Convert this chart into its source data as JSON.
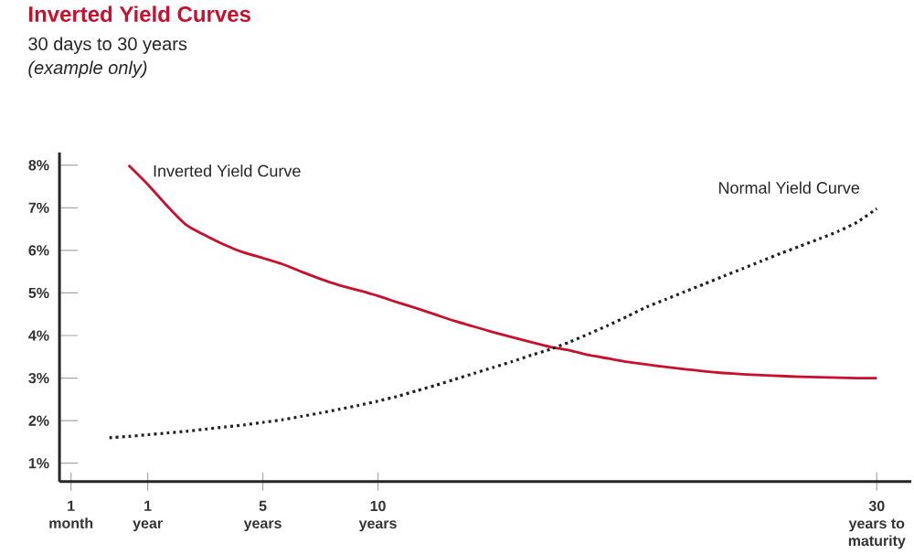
{
  "chart_data": {
    "type": "line",
    "title": "Inverted Yield Curves",
    "subtitle": "30 days to 30 years",
    "annotations": [
      "(example only)"
    ],
    "categories": [
      "1 month",
      null,
      null,
      null,
      "1 year",
      null,
      null,
      null,
      null,
      null,
      "5 years",
      null,
      null,
      null,
      null,
      null,
      "10 years",
      null,
      null,
      null,
      null,
      null,
      null,
      null,
      null,
      null,
      null,
      null,
      null,
      null,
      null,
      null,
      null,
      null,
      null,
      null,
      null,
      null,
      null,
      null,
      null,
      null,
      "30 years to maturity"
    ],
    "ylim": [
      0.57,
      8.3
    ],
    "yticks": [
      {
        "value": 1,
        "label": "1%"
      },
      {
        "value": 2,
        "label": "2%"
      },
      {
        "value": 3,
        "label": "3%"
      },
      {
        "value": 4,
        "label": "4%"
      },
      {
        "value": 5,
        "label": "5%"
      },
      {
        "value": 6,
        "label": "6%"
      },
      {
        "value": 7,
        "label": "7%"
      },
      {
        "value": 8,
        "label": "8%"
      }
    ],
    "marker": "none",
    "series": [
      {
        "name": "Inverted Yield Curve",
        "color": "#c8102e",
        "line_style": "solid",
        "values": [
          null,
          null,
          null,
          8.0,
          7.55,
          7.05,
          6.6,
          6.35,
          6.13,
          5.95,
          5.82,
          5.68,
          5.5,
          5.33,
          5.18,
          5.06,
          4.93,
          4.78,
          4.64,
          4.49,
          4.34,
          4.21,
          4.08,
          3.96,
          3.84,
          3.73,
          3.65,
          3.54,
          3.46,
          3.38,
          3.32,
          3.26,
          3.21,
          3.16,
          3.12,
          3.09,
          3.07,
          3.05,
          3.03,
          3.02,
          3.01,
          3.0,
          3.0
        ]
      },
      {
        "name": "Normal Yield Curve",
        "color": "#222222",
        "line_style": "dotted",
        "values": [
          null,
          null,
          1.6,
          1.63,
          1.67,
          1.71,
          1.75,
          1.8,
          1.85,
          1.9,
          1.96,
          2.02,
          2.1,
          2.18,
          2.27,
          2.36,
          2.46,
          2.57,
          2.7,
          2.83,
          2.97,
          3.11,
          3.25,
          3.39,
          3.54,
          3.68,
          3.85,
          4.04,
          4.24,
          4.45,
          4.67,
          4.85,
          5.03,
          5.21,
          5.39,
          5.57,
          5.75,
          5.93,
          6.1,
          6.27,
          6.45,
          6.67,
          6.98
        ]
      }
    ]
  }
}
